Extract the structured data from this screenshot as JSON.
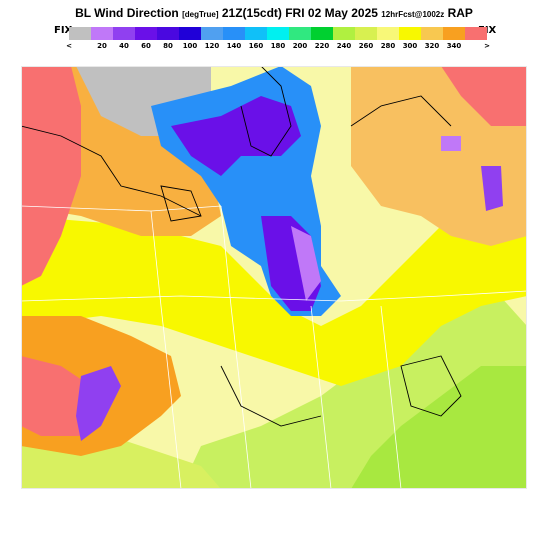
{
  "header": {
    "title_main": "BL Wind Direction",
    "title_units": "[degTrue]",
    "title_time": "21Z(15cdt) FRI 02 May 2025",
    "title_forecast": "12hrFcst@1002z",
    "title_model": "RAP"
  },
  "legend": {
    "fix_left": "FIX",
    "fix_right": "FIX",
    "under_label": "<",
    "over_label": ">",
    "bins": [
      {
        "color": "#c0c0c0",
        "label": ""
      },
      {
        "color": "#c078f8",
        "label": "20"
      },
      {
        "color": "#9040f0",
        "label": "40"
      },
      {
        "color": "#6a10e8",
        "label": "60"
      },
      {
        "color": "#4a08e0",
        "label": "80"
      },
      {
        "color": "#2000d8",
        "label": "100"
      },
      {
        "color": "#50a0f0",
        "label": "120"
      },
      {
        "color": "#2890f8",
        "label": "140"
      },
      {
        "color": "#10c0f8",
        "label": "160"
      },
      {
        "color": "#00f0f0",
        "label": "180"
      },
      {
        "color": "#30e880",
        "label": "200"
      },
      {
        "color": "#00d030",
        "label": "220"
      },
      {
        "color": "#b0f040",
        "label": "240"
      },
      {
        "color": "#d8f050",
        "label": "260"
      },
      {
        "color": "#f8f878",
        "label": "280"
      },
      {
        "color": "#f8f800",
        "label": "300"
      },
      {
        "color": "#f8c850",
        "label": "320"
      },
      {
        "color": "#f8a020",
        "label": "340"
      },
      {
        "color": "#f87070",
        "label": ""
      }
    ]
  }
}
